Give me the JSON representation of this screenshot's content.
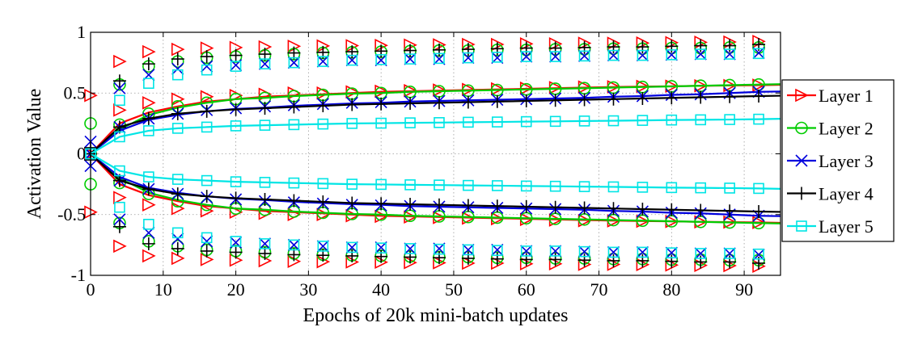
{
  "chart_data": {
    "type": "line",
    "title": "",
    "xlabel": "Epochs of 20k mini-batch updates",
    "ylabel": "Activation Value",
    "xlim": [
      0,
      95
    ],
    "ylim": [
      -1,
      1
    ],
    "xticks": [
      0,
      10,
      20,
      30,
      40,
      50,
      60,
      70,
      80,
      90
    ],
    "xtick_labels": [
      "0",
      "10",
      "20",
      "30",
      "40",
      "50",
      "60",
      "70",
      "80",
      "90"
    ],
    "yticks": [
      1,
      0.5,
      0,
      -0.5,
      -1
    ],
    "ytick_labels": [
      "1",
      "0.5",
      "0",
      "-0.5",
      "-1"
    ],
    "grid": true,
    "legend_position": "right",
    "marker_epochs": [
      0,
      4,
      8,
      12,
      16,
      20,
      24,
      28,
      32,
      36,
      40,
      44,
      48,
      52,
      56,
      60,
      64,
      68,
      72,
      76,
      80,
      84,
      88,
      92
    ],
    "series": [
      {
        "name": "Layer 1",
        "color": "#ff0000",
        "marker": "triangle-right",
        "mean": [
          0,
          0.25,
          0.34,
          0.39,
          0.43,
          0.45,
          0.47,
          0.48,
          0.49,
          0.5,
          0.51,
          0.515,
          0.52,
          0.525,
          0.53,
          0.535,
          0.54,
          0.545,
          0.55,
          0.553,
          0.556,
          0.56,
          0.562,
          0.565
        ],
        "mean_markers": [
          0,
          0.36,
          0.42,
          0.45,
          0.47,
          0.48,
          0.49,
          0.5,
          0.5,
          0.51,
          0.515,
          0.52,
          0.525,
          0.53,
          0.535,
          0.54,
          0.545,
          0.55,
          0.552,
          0.555,
          0.557,
          0.56,
          0.562,
          0.565
        ],
        "std_markers": [
          0.48,
          0.76,
          0.84,
          0.86,
          0.87,
          0.875,
          0.88,
          0.885,
          0.888,
          0.89,
          0.892,
          0.895,
          0.897,
          0.9,
          0.9,
          0.905,
          0.905,
          0.91,
          0.91,
          0.912,
          0.915,
          0.918,
          0.92,
          0.925
        ]
      },
      {
        "name": "Layer 2",
        "color": "#00cc00",
        "marker": "circle",
        "mean": [
          0,
          0.2,
          0.32,
          0.38,
          0.42,
          0.45,
          0.46,
          0.475,
          0.485,
          0.495,
          0.5,
          0.51,
          0.515,
          0.52,
          0.525,
          0.53,
          0.535,
          0.54,
          0.545,
          0.55,
          0.555,
          0.56,
          0.565,
          0.57
        ],
        "mean_markers": [
          0,
          0.24,
          0.33,
          0.39,
          0.42,
          0.45,
          0.46,
          0.475,
          0.485,
          0.495,
          0.5,
          0.51,
          0.515,
          0.52,
          0.525,
          0.53,
          0.535,
          0.54,
          0.545,
          0.55,
          0.555,
          0.56,
          0.565,
          0.57
        ],
        "std_markers": [
          0.25,
          0.57,
          0.72,
          0.76,
          0.79,
          0.8,
          0.81,
          0.82,
          0.83,
          0.835,
          0.84,
          0.845,
          0.85,
          0.85,
          0.855,
          0.855,
          0.86,
          0.86,
          0.865,
          0.865,
          0.87,
          0.87,
          0.875,
          0.875
        ]
      },
      {
        "name": "Layer 3",
        "color": "#0000dd",
        "marker": "x",
        "mean": [
          0,
          0.19,
          0.28,
          0.32,
          0.35,
          0.37,
          0.38,
          0.395,
          0.405,
          0.415,
          0.42,
          0.43,
          0.435,
          0.44,
          0.445,
          0.45,
          0.455,
          0.46,
          0.47,
          0.475,
          0.485,
          0.49,
          0.5,
          0.51
        ],
        "mean_markers": [
          0,
          0.22,
          0.29,
          0.33,
          0.36,
          0.375,
          0.39,
          0.4,
          0.41,
          0.42,
          0.425,
          0.43,
          0.435,
          0.44,
          0.445,
          0.45,
          0.455,
          0.46,
          0.47,
          0.475,
          0.485,
          0.49,
          0.5,
          0.51
        ],
        "std_markers": [
          0.1,
          0.54,
          0.65,
          0.7,
          0.72,
          0.73,
          0.74,
          0.75,
          0.76,
          0.77,
          0.77,
          0.78,
          0.78,
          0.79,
          0.79,
          0.8,
          0.8,
          0.805,
          0.81,
          0.81,
          0.815,
          0.82,
          0.82,
          0.83
        ]
      },
      {
        "name": "Layer 4",
        "color": "#000000",
        "marker": "plus",
        "mean": [
          0,
          0.22,
          0.29,
          0.33,
          0.35,
          0.365,
          0.375,
          0.385,
          0.395,
          0.405,
          0.41,
          0.415,
          0.42,
          0.425,
          0.43,
          0.435,
          0.44,
          0.445,
          0.45,
          0.455,
          0.46,
          0.465,
          0.47,
          0.475
        ],
        "mean_markers": [
          0,
          0.22,
          0.29,
          0.33,
          0.35,
          0.365,
          0.375,
          0.385,
          0.395,
          0.405,
          0.41,
          0.415,
          0.42,
          0.425,
          0.43,
          0.435,
          0.44,
          0.445,
          0.45,
          0.455,
          0.46,
          0.465,
          0.47,
          0.475
        ],
        "std_markers": [
          0.05,
          0.6,
          0.74,
          0.78,
          0.8,
          0.81,
          0.82,
          0.83,
          0.835,
          0.84,
          0.845,
          0.85,
          0.855,
          0.86,
          0.865,
          0.87,
          0.87,
          0.875,
          0.88,
          0.88,
          0.885,
          0.89,
          0.89,
          0.9
        ]
      },
      {
        "name": "Layer 5",
        "color": "#00e5e5",
        "marker": "square",
        "mean": [
          0,
          0.14,
          0.19,
          0.21,
          0.22,
          0.23,
          0.235,
          0.24,
          0.245,
          0.25,
          0.252,
          0.255,
          0.257,
          0.26,
          0.262,
          0.265,
          0.267,
          0.27,
          0.272,
          0.275,
          0.278,
          0.28,
          0.282,
          0.285
        ],
        "mean_markers": [
          0,
          0.14,
          0.19,
          0.21,
          0.22,
          0.23,
          0.235,
          0.24,
          0.245,
          0.25,
          0.252,
          0.255,
          0.257,
          0.26,
          0.262,
          0.265,
          0.267,
          0.27,
          0.272,
          0.275,
          0.278,
          0.28,
          0.282,
          0.285
        ],
        "std_markers": [
          0.0,
          0.44,
          0.58,
          0.65,
          0.69,
          0.72,
          0.74,
          0.75,
          0.76,
          0.77,
          0.775,
          0.78,
          0.785,
          0.79,
          0.795,
          0.8,
          0.8,
          0.805,
          0.81,
          0.81,
          0.815,
          0.82,
          0.82,
          0.825
        ]
      }
    ]
  }
}
